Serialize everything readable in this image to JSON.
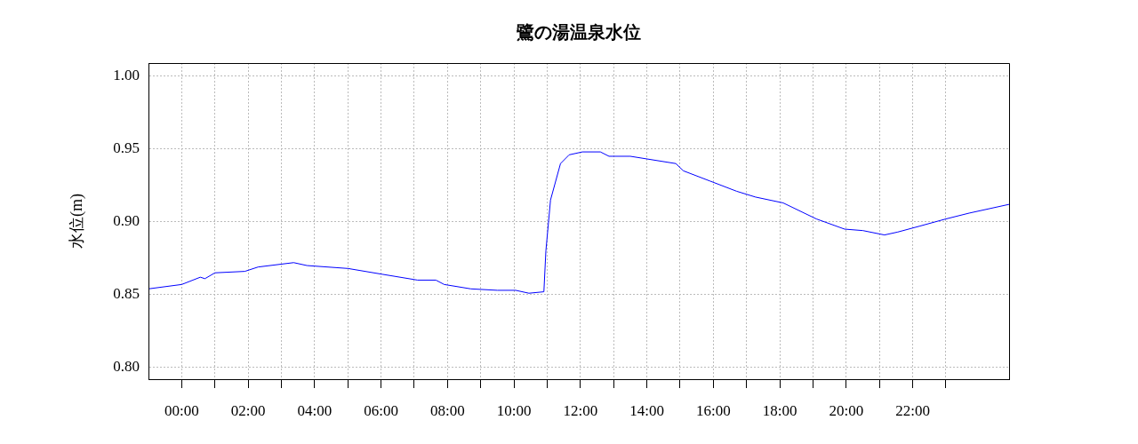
{
  "chart_data": {
    "type": "line",
    "title": "鷺の湯温泉水位",
    "ylabel": "水位(m)",
    "xlim": [
      -1,
      24.9
    ],
    "ylim": [
      0.792,
      1.009
    ],
    "xticks": [
      {
        "value": 0,
        "label": "00:00"
      },
      {
        "value": 1,
        "label": null
      },
      {
        "value": 2,
        "label": "02:00"
      },
      {
        "value": 3,
        "label": null
      },
      {
        "value": 4,
        "label": "04:00"
      },
      {
        "value": 5,
        "label": null
      },
      {
        "value": 6,
        "label": "06:00"
      },
      {
        "value": 7,
        "label": null
      },
      {
        "value": 8,
        "label": "08:00"
      },
      {
        "value": 9,
        "label": null
      },
      {
        "value": 10,
        "label": "10:00"
      },
      {
        "value": 11,
        "label": null
      },
      {
        "value": 12,
        "label": "12:00"
      },
      {
        "value": 13,
        "label": null
      },
      {
        "value": 14,
        "label": "14:00"
      },
      {
        "value": 15,
        "label": null
      },
      {
        "value": 16,
        "label": "16:00"
      },
      {
        "value": 17,
        "label": null
      },
      {
        "value": 18,
        "label": "18:00"
      },
      {
        "value": 19,
        "label": null
      },
      {
        "value": 20,
        "label": "20:00"
      },
      {
        "value": 21,
        "label": null
      },
      {
        "value": 22,
        "label": "22:00"
      },
      {
        "value": 23,
        "label": null
      }
    ],
    "yticks": [
      {
        "value": 0.8,
        "label": "0.80"
      },
      {
        "value": 0.85,
        "label": "0.85"
      },
      {
        "value": 0.9,
        "label": "0.90"
      },
      {
        "value": 0.95,
        "label": "0.95"
      },
      {
        "value": 1.0,
        "label": "1.00"
      }
    ],
    "grid": true,
    "marker": "none",
    "line_style": "solid",
    "series": [
      {
        "color": "#0000ff",
        "x": [
          -1,
          0,
          0.56,
          0.7,
          1,
          1.9,
          2.3,
          3.37,
          3.77,
          5,
          6.04,
          7.1,
          7.65,
          7.9,
          8.7,
          9.5,
          10.05,
          10.45,
          10.9,
          10.96,
          11.1,
          11.4,
          11.66,
          12.06,
          12.6,
          12.86,
          13.5,
          14.87,
          15.1,
          15.9,
          16.7,
          17.27,
          18.1,
          19.1,
          19.95,
          20.5,
          21.15,
          21.55,
          22.2,
          23,
          23.7,
          24.9
        ],
        "values": [
          0.854,
          0.857,
          0.862,
          0.861,
          0.865,
          0.866,
          0.869,
          0.872,
          0.87,
          0.868,
          0.864,
          0.86,
          0.86,
          0.857,
          0.854,
          0.853,
          0.853,
          0.851,
          0.852,
          0.88,
          0.915,
          0.94,
          0.946,
          0.948,
          0.948,
          0.945,
          0.945,
          0.94,
          0.935,
          0.928,
          0.921,
          0.917,
          0.913,
          0.902,
          0.895,
          0.894,
          0.891,
          0.893,
          0.897,
          0.902,
          0.906,
          0.912
        ]
      }
    ]
  }
}
